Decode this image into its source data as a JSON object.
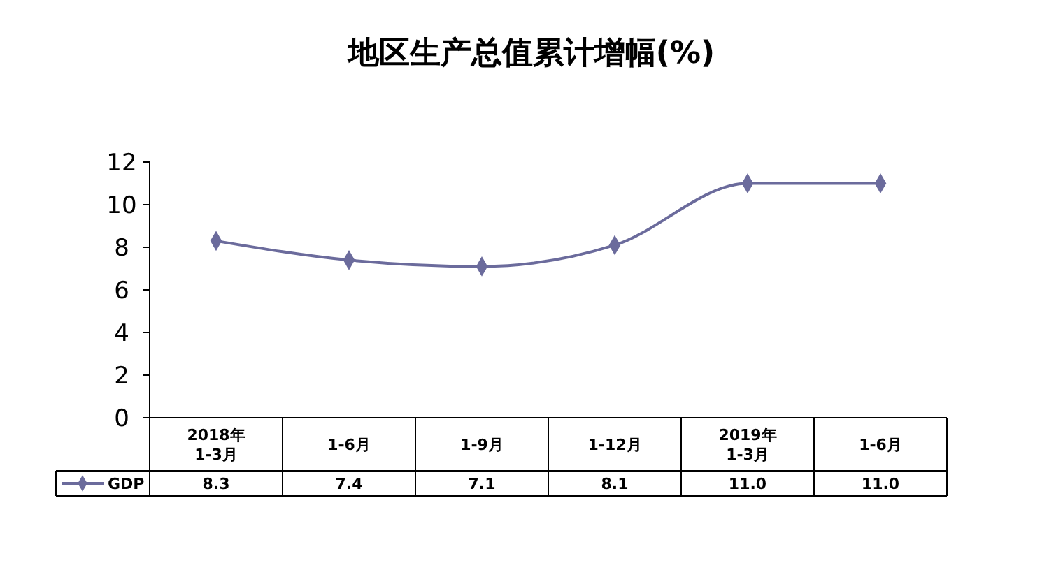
{
  "chart_data": {
    "type": "line",
    "title": "地区生产总值累计增幅(%)",
    "categories": [
      "2018年\n1-3月",
      "1-6月",
      "1-9月",
      "1-12月",
      "2019年\n1-3月",
      "1-6月"
    ],
    "series": [
      {
        "name": "GDP",
        "color": "#6b6b9c",
        "values": [
          8.3,
          7.4,
          7.1,
          8.1,
          11.0,
          11.0
        ],
        "value_labels": [
          "8.3",
          "7.4",
          "7.1",
          "8.1",
          "11.0",
          "11.0"
        ]
      }
    ],
    "ylim": [
      0,
      12
    ],
    "yticks": [
      0,
      2,
      4,
      6,
      8,
      10,
      12
    ],
    "grid": false,
    "legend": "bottom left",
    "marker": "diamond",
    "line_style": "solid"
  }
}
